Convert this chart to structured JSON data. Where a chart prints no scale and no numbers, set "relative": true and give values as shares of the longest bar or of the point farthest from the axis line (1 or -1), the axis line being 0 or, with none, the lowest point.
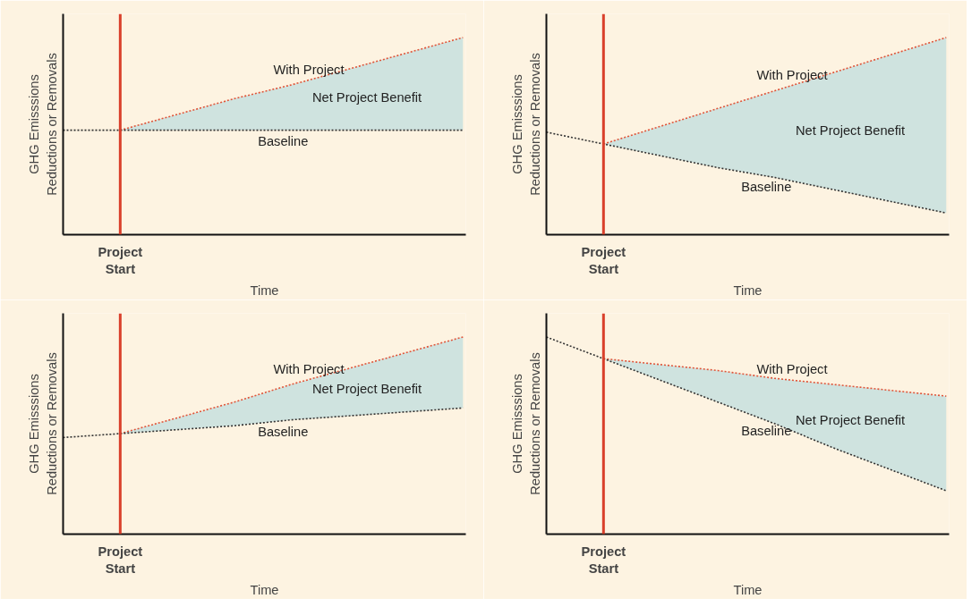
{
  "chart_data": [
    {
      "type": "line",
      "relative": true,
      "xlabel": "Time",
      "ylabel": "GHG Emisssions Reductions or Removals",
      "categories": [
        null,
        null,
        null,
        null,
        null,
        null,
        null,
        null
      ],
      "tick_labels": "x",
      "line_style": "dotted",
      "annotations": [
        "Project Start",
        "Net Project Benefit"
      ],
      "series": [
        {
          "name": "With Project",
          "color": "#e0553a",
          "values": [
            null,
            0.53,
            0.61,
            0.69,
            0.76,
            0.84,
            0.92,
            1
          ],
          "lower": [
            null,
            0.53,
            0.53,
            0.53,
            0.53,
            0.53,
            0.53,
            0.53
          ],
          "upper": [
            null,
            0.53,
            0.61,
            0.69,
            0.76,
            0.84,
            0.92,
            1
          ]
        },
        {
          "name": "Baseline",
          "color": "#333333",
          "values": [
            0.53,
            0.53,
            0.53,
            0.53,
            0.53,
            0.53,
            0.53,
            0.53
          ]
        }
      ]
    },
    {
      "type": "line",
      "relative": true,
      "xlabel": "Time",
      "ylabel": "GHG Emisssions Reductions or Removals",
      "categories": [
        null,
        null,
        null,
        null,
        null,
        null,
        null,
        null
      ],
      "tick_labels": "x",
      "line_style": "dotted",
      "annotations": [
        "Project Start",
        "Net Project Benefit"
      ],
      "series": [
        {
          "name": "With Project",
          "color": "#e0553a",
          "values": [
            null,
            0.46,
            0.55,
            0.64,
            0.73,
            0.82,
            0.91,
            1
          ],
          "lower": [
            null,
            0.46,
            0.4,
            0.34,
            0.29,
            0.23,
            0.17,
            0.11
          ],
          "upper": [
            null,
            0.46,
            0.55,
            0.64,
            0.73,
            0.82,
            0.91,
            1
          ]
        },
        {
          "name": "Baseline",
          "color": "#333333",
          "values": [
            0.52,
            0.46,
            0.4,
            0.34,
            0.29,
            0.23,
            0.17,
            0.11
          ]
        }
      ]
    },
    {
      "type": "line",
      "relative": true,
      "xlabel": "Time",
      "ylabel": "GHG Emisssions Reductions or Removals",
      "categories": [
        null,
        null,
        null,
        null,
        null,
        null,
        null,
        null
      ],
      "tick_labels": "x",
      "line_style": "dotted",
      "annotations": [
        "Project Start",
        "Net Project Benefit"
      ],
      "series": [
        {
          "name": "With Project",
          "color": "#e0553a",
          "values": [
            null,
            0.51,
            0.59,
            0.67,
            0.76,
            0.84,
            0.92,
            1
          ],
          "lower": [
            null,
            0.51,
            0.53,
            0.55,
            0.58,
            0.6,
            0.62,
            0.64
          ],
          "upper": [
            null,
            0.51,
            0.59,
            0.67,
            0.76,
            0.84,
            0.92,
            1
          ]
        },
        {
          "name": "Baseline",
          "color": "#333333",
          "values": [
            0.49,
            0.51,
            0.53,
            0.55,
            0.58,
            0.6,
            0.62,
            0.64
          ]
        }
      ]
    },
    {
      "type": "line",
      "relative": true,
      "xlabel": "Time",
      "ylabel": "GHG Emisssions Reductions or Removals",
      "categories": [
        null,
        null,
        null,
        null,
        null,
        null,
        null,
        null
      ],
      "tick_labels": "x",
      "line_style": "dotted",
      "annotations": [
        "Project Start",
        "Net Project Benefit"
      ],
      "series": [
        {
          "name": "With Project",
          "color": "#e0553a",
          "values": [
            null,
            0.89,
            0.86,
            0.83,
            0.79,
            0.76,
            0.73,
            0.7
          ],
          "lower": [
            null,
            0.89,
            0.78,
            0.67,
            0.56,
            0.44,
            0.33,
            0.22
          ],
          "upper": [
            null,
            0.89,
            0.86,
            0.83,
            0.79,
            0.76,
            0.73,
            0.7
          ]
        },
        {
          "name": "Baseline",
          "color": "#333333",
          "values": [
            1,
            0.89,
            0.78,
            0.67,
            0.56,
            0.44,
            0.33,
            0.22
          ]
        }
      ]
    }
  ]
}
